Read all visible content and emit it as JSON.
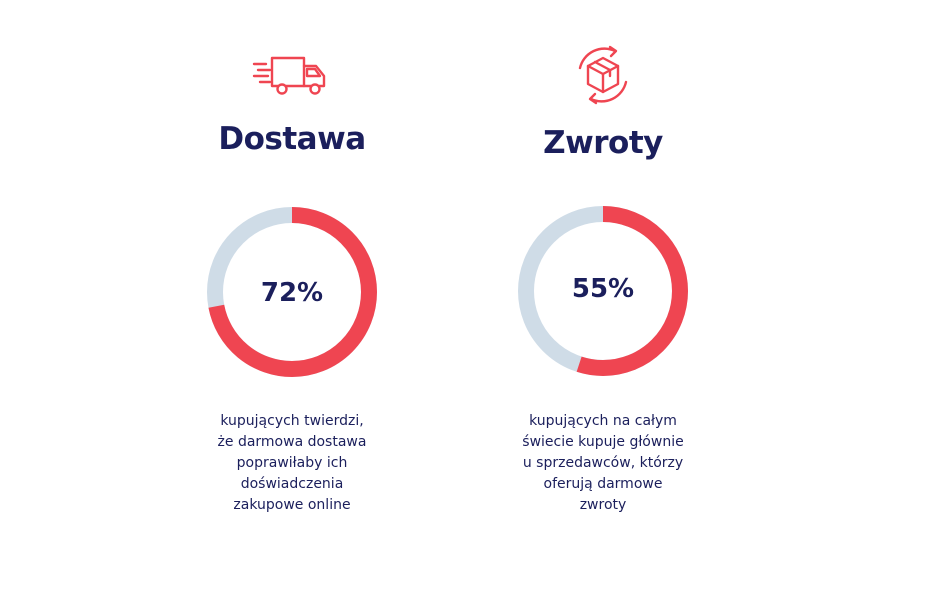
{
  "colors": {
    "accent": "#ef4551",
    "track": "#cfdce7",
    "text": "#1b1f5c",
    "background": "#ffffff"
  },
  "chart_data": [
    {
      "type": "pie",
      "title": "Dostawa",
      "value_label": "72%",
      "values": [
        72,
        28
      ],
      "icon": "delivery-truck-icon",
      "caption_lines": [
        "kupujących twierdzi,",
        "że darmowa dostawa",
        "poprawiłaby ich",
        "doświadczenia",
        "zakupowe online"
      ]
    },
    {
      "type": "pie",
      "title": "Zwroty",
      "value_label": "55%",
      "values": [
        55,
        45
      ],
      "icon": "returns-box-icon",
      "caption_lines": [
        "kupujących na całym",
        "świecie kupuje głównie",
        "u sprzedawców, którzy",
        "oferują darmowe",
        "zwroty"
      ]
    }
  ]
}
